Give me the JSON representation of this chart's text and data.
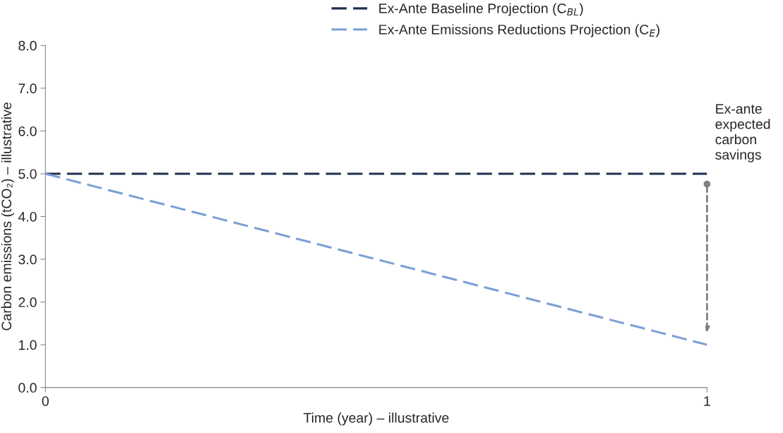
{
  "chart_data": {
    "type": "line",
    "xlabel": "Time (year) – illustrative",
    "ylabel": "Carbon emissions (tCO₂) – illustrative",
    "x": [
      0,
      1
    ],
    "series": [
      {
        "name": "Ex-Ante Baseline Projection (C$_{BL}$)",
        "color": "#1f3150",
        "values": [
          5.0,
          5.0
        ]
      },
      {
        "name": "Ex-Ante Emissions Reductions Projection (C$_{E}$)",
        "color": "#7ba0d4",
        "values": [
          5.0,
          1.0
        ]
      }
    ],
    "xlim": [
      0,
      1
    ],
    "xticks": [
      0,
      1
    ],
    "ylim": [
      0,
      8
    ],
    "yticks": [
      {
        "value": 0,
        "label": "0.0"
      },
      {
        "value": 1,
        "label": "1.0"
      },
      {
        "value": 2,
        "label": "2.0"
      },
      {
        "value": 3,
        "label": "3.0"
      },
      {
        "value": 4,
        "label": "4.0"
      },
      {
        "value": 5,
        "label": "5.0"
      },
      {
        "value": 6,
        "label": "6.0"
      },
      {
        "value": 7,
        "label": "7.0"
      },
      {
        "value": 8,
        "label": "8.0"
      }
    ],
    "annotations": [
      "Ex-ante\nexpected\ncarbon\nsavings"
    ],
    "line_style": "dashed",
    "marker": "none",
    "grid": false,
    "legend": "top"
  }
}
